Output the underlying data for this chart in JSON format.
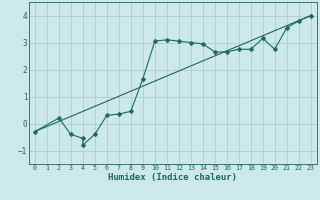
{
  "xlabel": "Humidex (Indice chaleur)",
  "bg_color": "#cce8e8",
  "grid_color": "#aecece",
  "line_color": "#1a6b5a",
  "xlim": [
    -0.5,
    23.5
  ],
  "ylim": [
    -1.5,
    4.5
  ],
  "xticks": [
    0,
    1,
    2,
    3,
    4,
    5,
    6,
    7,
    8,
    9,
    10,
    11,
    12,
    13,
    14,
    15,
    16,
    17,
    18,
    19,
    20,
    21,
    22,
    23
  ],
  "yticks": [
    -1,
    0,
    1,
    2,
    3,
    4
  ],
  "curve1_x": [
    0,
    2,
    3,
    4,
    4,
    5,
    6,
    7,
    8,
    9,
    10,
    11,
    12,
    13,
    14,
    15,
    16,
    17,
    18,
    19,
    20,
    21,
    22,
    23
  ],
  "curve1_y": [
    -0.3,
    0.2,
    -0.4,
    -0.55,
    -0.8,
    -0.4,
    0.3,
    0.35,
    0.45,
    1.65,
    3.05,
    3.1,
    3.05,
    3.0,
    2.95,
    2.65,
    2.65,
    2.75,
    2.75,
    3.15,
    2.75,
    3.55,
    3.8,
    4.0
  ],
  "curve2_x": [
    0,
    23
  ],
  "curve2_y": [
    -0.3,
    4.0
  ],
  "marker_size": 2.5
}
